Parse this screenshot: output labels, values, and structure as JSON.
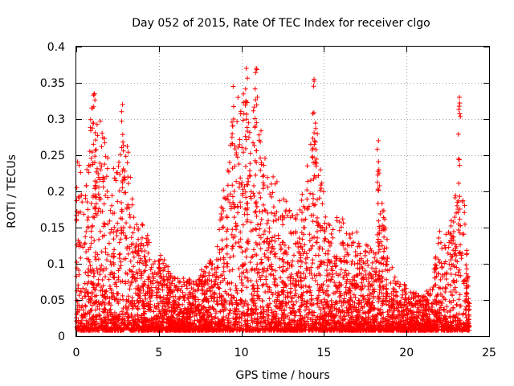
{
  "chart_data": {
    "type": "scatter",
    "title": "Day 052 of 2015, Rate Of TEC Index for receiver clgo",
    "xlabel": "GPS time / hours",
    "ylabel": "ROTI / TECUs",
    "xlim": [
      0,
      25
    ],
    "ylim": [
      0,
      0.4
    ],
    "xticks": [
      0,
      5,
      10,
      15,
      20,
      25
    ],
    "yticks": [
      0,
      0.05,
      0.1,
      0.15,
      0.2,
      0.25,
      0.3,
      0.35,
      0.4
    ],
    "xtick_labels": [
      "0",
      "5",
      "10",
      "15",
      "20",
      "25"
    ],
    "ytick_labels": [
      "0",
      "0.05",
      "0.1",
      "0.15",
      "0.2",
      "0.25",
      "0.3",
      "0.35",
      "0.4"
    ],
    "grid": true,
    "marker": "+",
    "color": "#ff0000",
    "series": [
      {
        "name": "ROTI",
        "x_range": [
          0,
          23.8
        ],
        "activity_envelope": {
          "hour": [
            0,
            0.5,
            1,
            1.5,
            2,
            2.5,
            3,
            3.5,
            4,
            4.5,
            5,
            5.5,
            6,
            6.5,
            7,
            7.5,
            8,
            8.5,
            9,
            9.5,
            10,
            10.5,
            11,
            11.5,
            12,
            12.5,
            13,
            13.5,
            14,
            14.5,
            15,
            15.5,
            16,
            16.5,
            17,
            17.5,
            18,
            18.5,
            19,
            19.5,
            20,
            20.5,
            21,
            21.5,
            22,
            22.5,
            23,
            23.5,
            23.8
          ],
          "max_roti": [
            0.25,
            0.22,
            0.33,
            0.3,
            0.24,
            0.23,
            0.3,
            0.17,
            0.16,
            0.13,
            0.12,
            0.1,
            0.08,
            0.08,
            0.08,
            0.09,
            0.1,
            0.13,
            0.22,
            0.3,
            0.36,
            0.3,
            0.35,
            0.25,
            0.22,
            0.2,
            0.17,
            0.17,
            0.25,
            0.3,
            0.2,
            0.17,
            0.17,
            0.14,
            0.15,
            0.13,
            0.12,
            0.2,
            0.1,
            0.08,
            0.07,
            0.06,
            0.06,
            0.07,
            0.15,
            0.14,
            0.2,
            0.19,
            0.05
          ]
        },
        "peaks": [
          {
            "x": 1.1,
            "y": 0.335
          },
          {
            "x": 2.8,
            "y": 0.32
          },
          {
            "x": 9.5,
            "y": 0.345
          },
          {
            "x": 10.3,
            "y": 0.37
          },
          {
            "x": 10.9,
            "y": 0.37
          },
          {
            "x": 14.4,
            "y": 0.355
          },
          {
            "x": 18.3,
            "y": 0.27
          },
          {
            "x": 23.2,
            "y": 0.33
          }
        ]
      }
    ]
  }
}
